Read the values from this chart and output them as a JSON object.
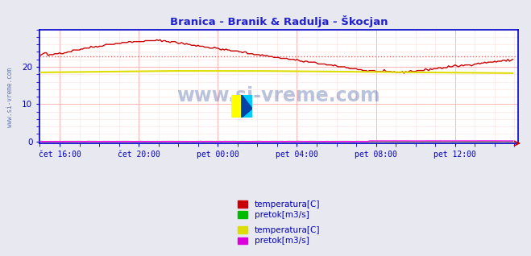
{
  "title": "Branica - Branik & Radulja - Škocjan",
  "title_color": "#2222cc",
  "bg_color": "#e8e8f0",
  "plot_bg_color": "#ffffff",
  "grid_color_major": "#ffaaaa",
  "grid_color_minor": "#ffdddd",
  "tick_color": "#0000bb",
  "spine_color": "#0000cc",
  "watermark": "www.si-vreme.com",
  "watermark_color": "#1a3a8a",
  "side_label": "www.si-vreme.com",
  "side_label_color": "#4466aa",
  "xtick_labels": [
    "čet 16:00",
    "čet 20:00",
    "pet 00:00",
    "pet 04:00",
    "pet 08:00",
    "pet 12:00"
  ],
  "ytick_labels": [
    "0",
    "10",
    "20"
  ],
  "ylim": [
    -0.5,
    30
  ],
  "xlim": [
    0,
    290
  ],
  "xtick_positions": [
    12,
    60,
    108,
    156,
    204,
    252
  ],
  "legend": [
    {
      "label": "temperatura[C]",
      "color": "#cc0000"
    },
    {
      "label": "pretok[m3/s]",
      "color": "#00bb00"
    },
    {
      "label": "temperatura[C]",
      "color": "#dddd00"
    },
    {
      "label": "pretok[m3/s]",
      "color": "#dd00dd"
    }
  ],
  "branica_temp_color": "#cc0000",
  "branica_pretok_color": "#00bb00",
  "radulja_temp_color": "#dddd00",
  "radulja_pretok_color": "#ff00ff",
  "avg_line_color": "#ff5555",
  "avg_line_value": 22.8,
  "arrow_color": "#cc0000"
}
